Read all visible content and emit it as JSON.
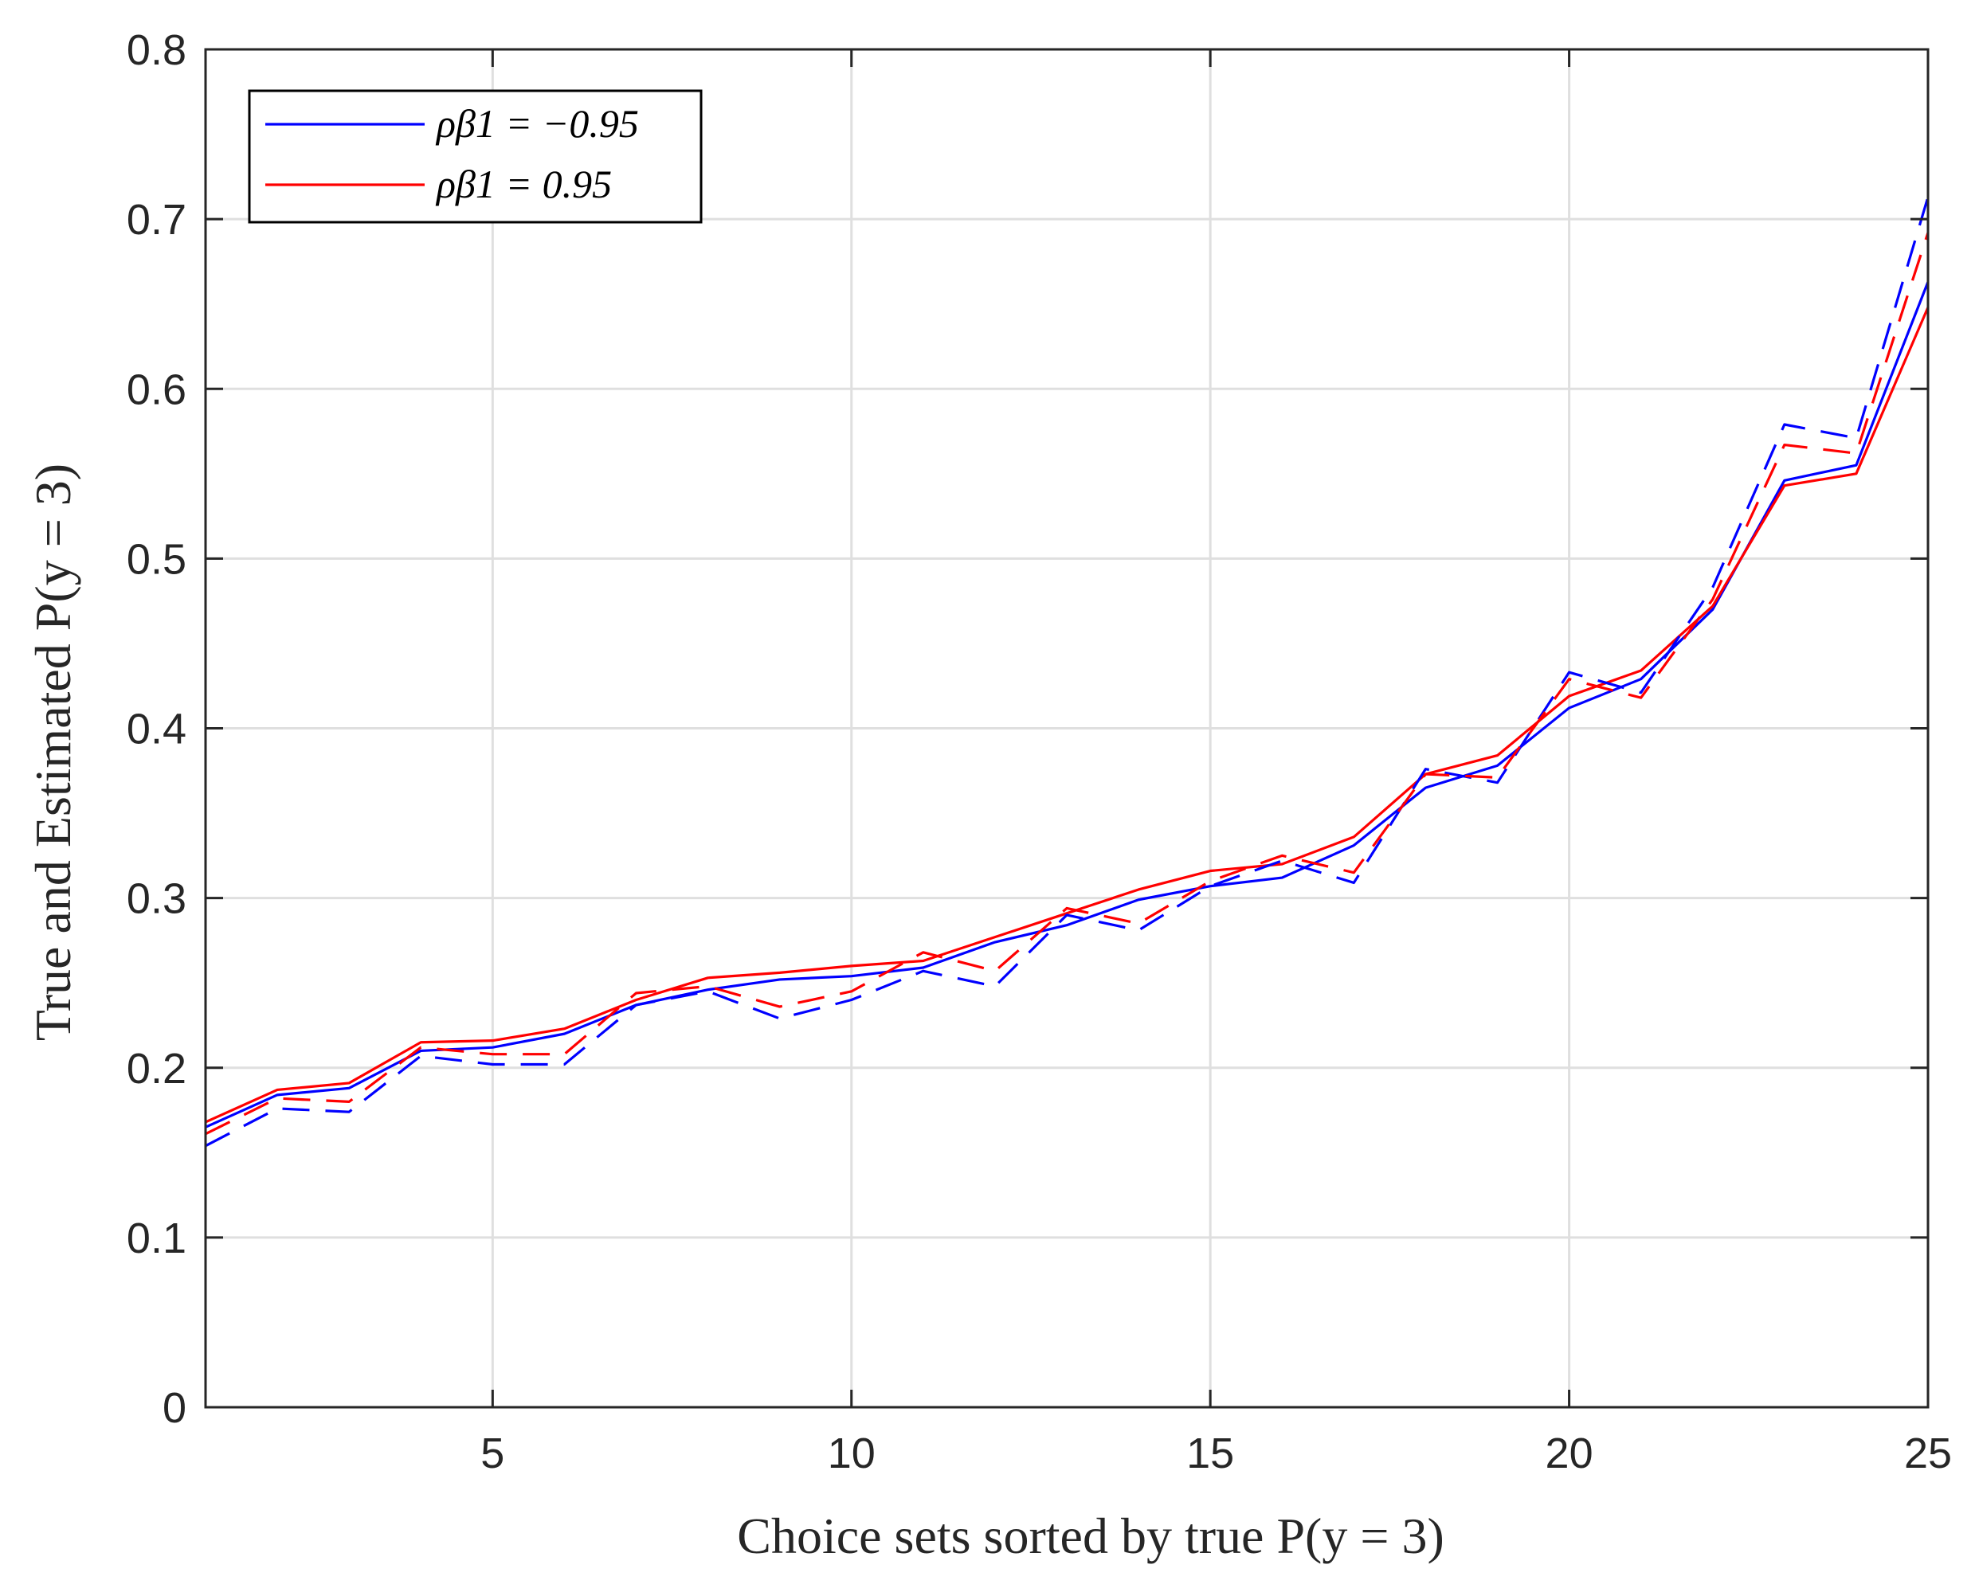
{
  "chart_data": {
    "type": "line",
    "xlabel": "Choice sets sorted by true P(y = 3)",
    "ylabel": "True and Estimated P(y = 3)",
    "xlim": [
      1,
      25
    ],
    "ylim": [
      0,
      0.8
    ],
    "xticks": [
      5,
      10,
      15,
      20,
      25
    ],
    "yticks": [
      0,
      0.1,
      0.2,
      0.3,
      0.4,
      0.5,
      0.6,
      0.7,
      0.8
    ],
    "xtick_labels": [
      "5",
      "10",
      "15",
      "20",
      "25"
    ],
    "ytick_labels": [
      "0",
      "0.1",
      "0.2",
      "0.3",
      "0.4",
      "0.5",
      "0.6",
      "0.7",
      "0.8"
    ],
    "grid": true,
    "legend_position": "top-left",
    "legend": [
      {
        "label": "ρβ1 = −0.95",
        "color": "#0000ff"
      },
      {
        "label": "ρβ1 = 0.95",
        "color": "#ff0000"
      }
    ],
    "x": [
      1,
      2,
      3,
      4,
      5,
      6,
      7,
      8,
      9,
      10,
      11,
      12,
      13,
      14,
      15,
      16,
      17,
      18,
      19,
      20,
      21,
      22,
      23,
      24,
      25
    ],
    "series": [
      {
        "name": "ρβ1 = −0.95",
        "style": "solid",
        "color": "#0000ff",
        "values": [
          0.165,
          0.184,
          0.188,
          0.21,
          0.212,
          0.22,
          0.237,
          0.246,
          0.252,
          0.254,
          0.259,
          0.274,
          0.284,
          0.299,
          0.307,
          0.312,
          0.331,
          0.365,
          0.378,
          0.412,
          0.429,
          0.47,
          0.546,
          0.555,
          0.663
        ]
      },
      {
        "name": "ρβ1 = 0.95",
        "style": "solid",
        "color": "#ff0000",
        "values": [
          0.168,
          0.187,
          0.191,
          0.215,
          0.216,
          0.223,
          0.24,
          0.253,
          0.256,
          0.26,
          0.263,
          0.277,
          0.291,
          0.305,
          0.316,
          0.32,
          0.336,
          0.373,
          0.384,
          0.419,
          0.434,
          0.472,
          0.543,
          0.55,
          0.648
        ]
      },
      {
        "name": "",
        "style": "dashed",
        "color": "#0000ff",
        "values": [
          0.154,
          0.176,
          0.174,
          0.207,
          0.202,
          0.202,
          0.237,
          0.245,
          0.229,
          0.24,
          0.257,
          0.248,
          0.29,
          0.281,
          0.307,
          0.322,
          0.309,
          0.376,
          0.368,
          0.433,
          0.421,
          0.483,
          0.579,
          0.571,
          0.713
        ]
      },
      {
        "name": "",
        "style": "dashed",
        "color": "#ff0000",
        "values": [
          0.161,
          0.182,
          0.18,
          0.212,
          0.208,
          0.208,
          0.244,
          0.248,
          0.236,
          0.245,
          0.268,
          0.257,
          0.294,
          0.285,
          0.31,
          0.325,
          0.315,
          0.373,
          0.371,
          0.429,
          0.418,
          0.476,
          0.567,
          0.562,
          0.692
        ]
      }
    ]
  }
}
